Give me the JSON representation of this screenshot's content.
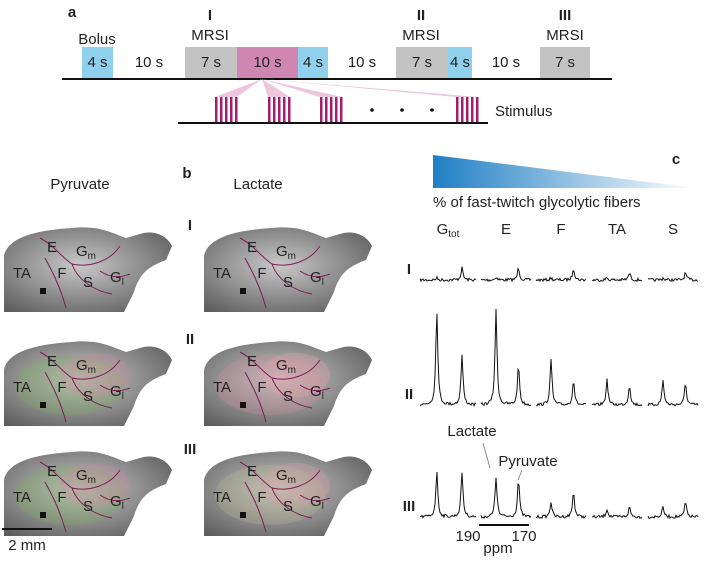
{
  "panel_a": {
    "label": "a",
    "bolus": "Bolus",
    "segments": [
      "4 s",
      "10 s",
      "7 s",
      "10 s",
      "4 s",
      "10 s",
      "7 s",
      "4 s",
      "10 s",
      "7 s"
    ],
    "phases": [
      {
        "numeral": "I",
        "name": "MRSI"
      },
      {
        "numeral": "II",
        "name": "MRSI"
      },
      {
        "numeral": "III",
        "name": "MRSI"
      }
    ],
    "stimulus": "Stimulus"
  },
  "panel_b": {
    "label": "b",
    "columns": [
      "Pyruvate",
      "Lactate"
    ],
    "rows": [
      "I",
      "II",
      "III"
    ],
    "regions": [
      {
        "base": "E"
      },
      {
        "base": "G",
        "sub": "m"
      },
      {
        "base": "TA"
      },
      {
        "base": "F"
      },
      {
        "base": "S"
      },
      {
        "base": "G",
        "sub": "l"
      }
    ],
    "scale_bar": "2 mm"
  },
  "panel_c": {
    "label": "c",
    "gradient_label": "% of fast-twitch glycolytic fibers",
    "columns": [
      {
        "base": "G",
        "sub": "tot"
      },
      {
        "base": "E"
      },
      {
        "base": "F"
      },
      {
        "base": "TA"
      },
      {
        "base": "S"
      }
    ],
    "rows": [
      "I",
      "II",
      "III"
    ],
    "lactate": "Lactate",
    "pyruvate": "Pyruvate",
    "axis_ticks": [
      "190",
      "170"
    ],
    "axis_label": "ppm"
  }
}
